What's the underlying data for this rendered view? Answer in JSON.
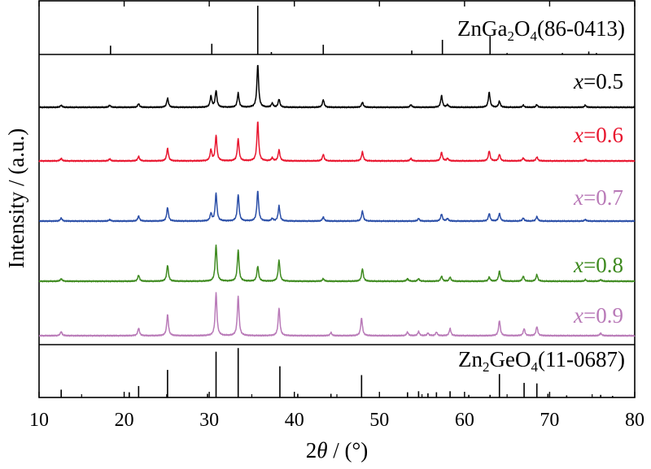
{
  "chart_data": {
    "type": "line",
    "xlabel_prefix": "2",
    "xlabel_var": "θ",
    "xlabel_suffix": " / (°)",
    "ylabel": "Intensity / (a.u.)",
    "xlim": [
      10,
      80
    ],
    "xticks": [
      "10",
      "20",
      "30",
      "40",
      "50",
      "60",
      "70",
      "80"
    ],
    "reference_top": {
      "name_parts": [
        "ZnGa",
        "2",
        "O",
        "4",
        "(86-0413)"
      ],
      "peaks": [
        [
          18.4,
          0.18
        ],
        [
          30.3,
          0.22
        ],
        [
          35.7,
          1.0
        ],
        [
          37.3,
          0.05
        ],
        [
          43.4,
          0.2
        ],
        [
          53.8,
          0.08
        ],
        [
          57.4,
          0.3
        ],
        [
          63.0,
          0.38
        ],
        [
          65.0,
          0.03
        ],
        [
          71.5,
          0.03
        ],
        [
          74.6,
          0.06
        ],
        [
          75.5,
          0.03
        ]
      ]
    },
    "reference_bottom": {
      "name_parts": [
        "Zn",
        "2",
        "GeO",
        "4",
        "(11-0687)"
      ],
      "peaks": [
        [
          12.6,
          0.15
        ],
        [
          20.6,
          0.1
        ],
        [
          21.7,
          0.22
        ],
        [
          25.1,
          0.53
        ],
        [
          29.8,
          0.07
        ],
        [
          30.8,
          0.88
        ],
        [
          33.4,
          0.95
        ],
        [
          38.3,
          0.6
        ],
        [
          40.4,
          0.07
        ],
        [
          44.3,
          0.07
        ],
        [
          47.9,
          0.43
        ],
        [
          53.3,
          0.1
        ],
        [
          54.6,
          0.12
        ],
        [
          55.7,
          0.08
        ],
        [
          56.7,
          0.1
        ],
        [
          58.3,
          0.12
        ],
        [
          60.5,
          0.05
        ],
        [
          63.0,
          0.05
        ],
        [
          64.1,
          0.45
        ],
        [
          67.0,
          0.28
        ],
        [
          68.5,
          0.27
        ],
        [
          69.8,
          0.07
        ],
        [
          72.0,
          0.04
        ],
        [
          76.0,
          0.05
        ],
        [
          77.4,
          0.03
        ]
      ]
    },
    "series": [
      {
        "var": "x",
        "eq": "=0.5",
        "color": "#000000",
        "peaks": [
          [
            12.6,
            0.04
          ],
          [
            18.3,
            0.04
          ],
          [
            21.7,
            0.07
          ],
          [
            25.1,
            0.18
          ],
          [
            30.2,
            0.22
          ],
          [
            30.8,
            0.33
          ],
          [
            33.4,
            0.28
          ],
          [
            35.7,
            0.85
          ],
          [
            37.4,
            0.08
          ],
          [
            38.2,
            0.16
          ],
          [
            43.4,
            0.15
          ],
          [
            48.0,
            0.1
          ],
          [
            53.7,
            0.05
          ],
          [
            57.3,
            0.23
          ],
          [
            58.0,
            0.05
          ],
          [
            62.9,
            0.3
          ],
          [
            64.1,
            0.12
          ],
          [
            66.9,
            0.04
          ],
          [
            68.5,
            0.05
          ],
          [
            74.2,
            0.04
          ]
        ]
      },
      {
        "var": "x",
        "eq": "=0.6",
        "color": "#e8152e",
        "peaks": [
          [
            12.6,
            0.05
          ],
          [
            18.3,
            0.04
          ],
          [
            21.7,
            0.09
          ],
          [
            25.1,
            0.25
          ],
          [
            30.2,
            0.22
          ],
          [
            30.8,
            0.5
          ],
          [
            33.4,
            0.44
          ],
          [
            35.7,
            0.78
          ],
          [
            37.4,
            0.06
          ],
          [
            38.2,
            0.22
          ],
          [
            43.4,
            0.13
          ],
          [
            48.0,
            0.18
          ],
          [
            53.7,
            0.05
          ],
          [
            57.3,
            0.17
          ],
          [
            58.0,
            0.05
          ],
          [
            62.9,
            0.2
          ],
          [
            64.1,
            0.13
          ],
          [
            66.9,
            0.06
          ],
          [
            68.5,
            0.08
          ],
          [
            74.2,
            0.03
          ]
        ]
      },
      {
        "var": "x",
        "eq": "=0.7",
        "color": "#2a4ea7",
        "peaks": [
          [
            12.6,
            0.06
          ],
          [
            18.3,
            0.03
          ],
          [
            21.7,
            0.1
          ],
          [
            25.1,
            0.27
          ],
          [
            30.2,
            0.15
          ],
          [
            30.8,
            0.55
          ],
          [
            33.4,
            0.53
          ],
          [
            35.7,
            0.6
          ],
          [
            37.4,
            0.05
          ],
          [
            38.2,
            0.3
          ],
          [
            43.4,
            0.08
          ],
          [
            48.0,
            0.2
          ],
          [
            54.6,
            0.05
          ],
          [
            57.3,
            0.14
          ],
          [
            58.0,
            0.05
          ],
          [
            62.9,
            0.15
          ],
          [
            64.1,
            0.15
          ],
          [
            66.9,
            0.06
          ],
          [
            68.5,
            0.09
          ],
          [
            74.2,
            0.03
          ]
        ]
      },
      {
        "var": "x",
        "eq": "=0.8",
        "color": "#3e8a1f",
        "peaks": [
          [
            12.6,
            0.05
          ],
          [
            21.7,
            0.12
          ],
          [
            25.1,
            0.32
          ],
          [
            30.8,
            0.72
          ],
          [
            33.4,
            0.62
          ],
          [
            35.7,
            0.3
          ],
          [
            38.2,
            0.42
          ],
          [
            43.4,
            0.05
          ],
          [
            48.0,
            0.25
          ],
          [
            53.3,
            0.05
          ],
          [
            54.6,
            0.05
          ],
          [
            57.3,
            0.1
          ],
          [
            58.3,
            0.08
          ],
          [
            62.9,
            0.08
          ],
          [
            64.1,
            0.2
          ],
          [
            66.9,
            0.1
          ],
          [
            68.5,
            0.13
          ],
          [
            74.2,
            0.03
          ],
          [
            76.0,
            0.03
          ]
        ]
      },
      {
        "var": "x",
        "eq": "=0.9",
        "color": "#b97ab8",
        "peaks": [
          [
            12.6,
            0.08
          ],
          [
            21.7,
            0.15
          ],
          [
            25.1,
            0.42
          ],
          [
            30.8,
            0.85
          ],
          [
            33.4,
            0.78
          ],
          [
            38.2,
            0.55
          ],
          [
            44.3,
            0.06
          ],
          [
            47.9,
            0.35
          ],
          [
            53.3,
            0.07
          ],
          [
            54.6,
            0.08
          ],
          [
            55.7,
            0.05
          ],
          [
            56.7,
            0.07
          ],
          [
            58.3,
            0.14
          ],
          [
            64.1,
            0.3
          ],
          [
            67.0,
            0.14
          ],
          [
            68.5,
            0.18
          ],
          [
            76.0,
            0.05
          ]
        ]
      }
    ]
  }
}
